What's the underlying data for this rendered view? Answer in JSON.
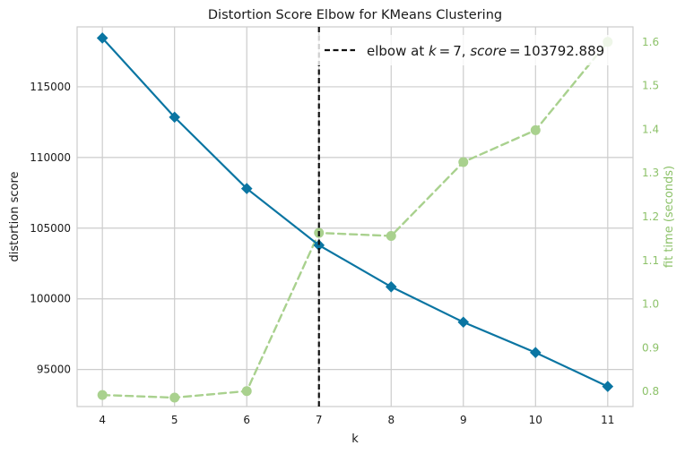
{
  "chart_data": {
    "type": "line",
    "title": "Distortion Score Elbow for KMeans Clustering",
    "xlabel": "k",
    "ylabel": "distortion score",
    "y2label": "fit time (seconds)",
    "x": [
      4,
      5,
      6,
      7,
      8,
      9,
      10,
      11
    ],
    "xticks": [
      "4",
      "5",
      "6",
      "7",
      "8",
      "9",
      "10",
      "11"
    ],
    "xlim": [
      3.65,
      11.35
    ],
    "ylim": [
      92380,
      119240
    ],
    "yticks": [
      95000,
      100000,
      105000,
      110000,
      115000
    ],
    "y2lim": [
      0.7656,
      1.6344
    ],
    "y2ticks": [
      0.8,
      0.9,
      1.0,
      1.1,
      1.2,
      1.3,
      1.4,
      1.5,
      1.6
    ],
    "series": [
      {
        "axis": "left",
        "values": [
          118450,
          112850,
          107800,
          103792.889,
          100850,
          98350,
          96200,
          93800
        ]
      },
      {
        "axis": "right",
        "values": [
          0.792,
          0.786,
          0.801,
          1.163,
          1.156,
          1.325,
          1.398,
          1.6
        ]
      }
    ],
    "elbow": {
      "k": 7,
      "score": 103792.889
    },
    "legend": {
      "position": "top-right",
      "label": "elbow at $k = 7$, $score = 103792.889$"
    },
    "grid": true,
    "colors": {
      "distortion": "#0a75a2",
      "fit_time": "#a9d18e",
      "fit_time_axis": "#8dc26a",
      "elbow": "#111111",
      "grid": "#cccccc",
      "spine": "#cccccc",
      "text": "#1a1a1a"
    }
  }
}
